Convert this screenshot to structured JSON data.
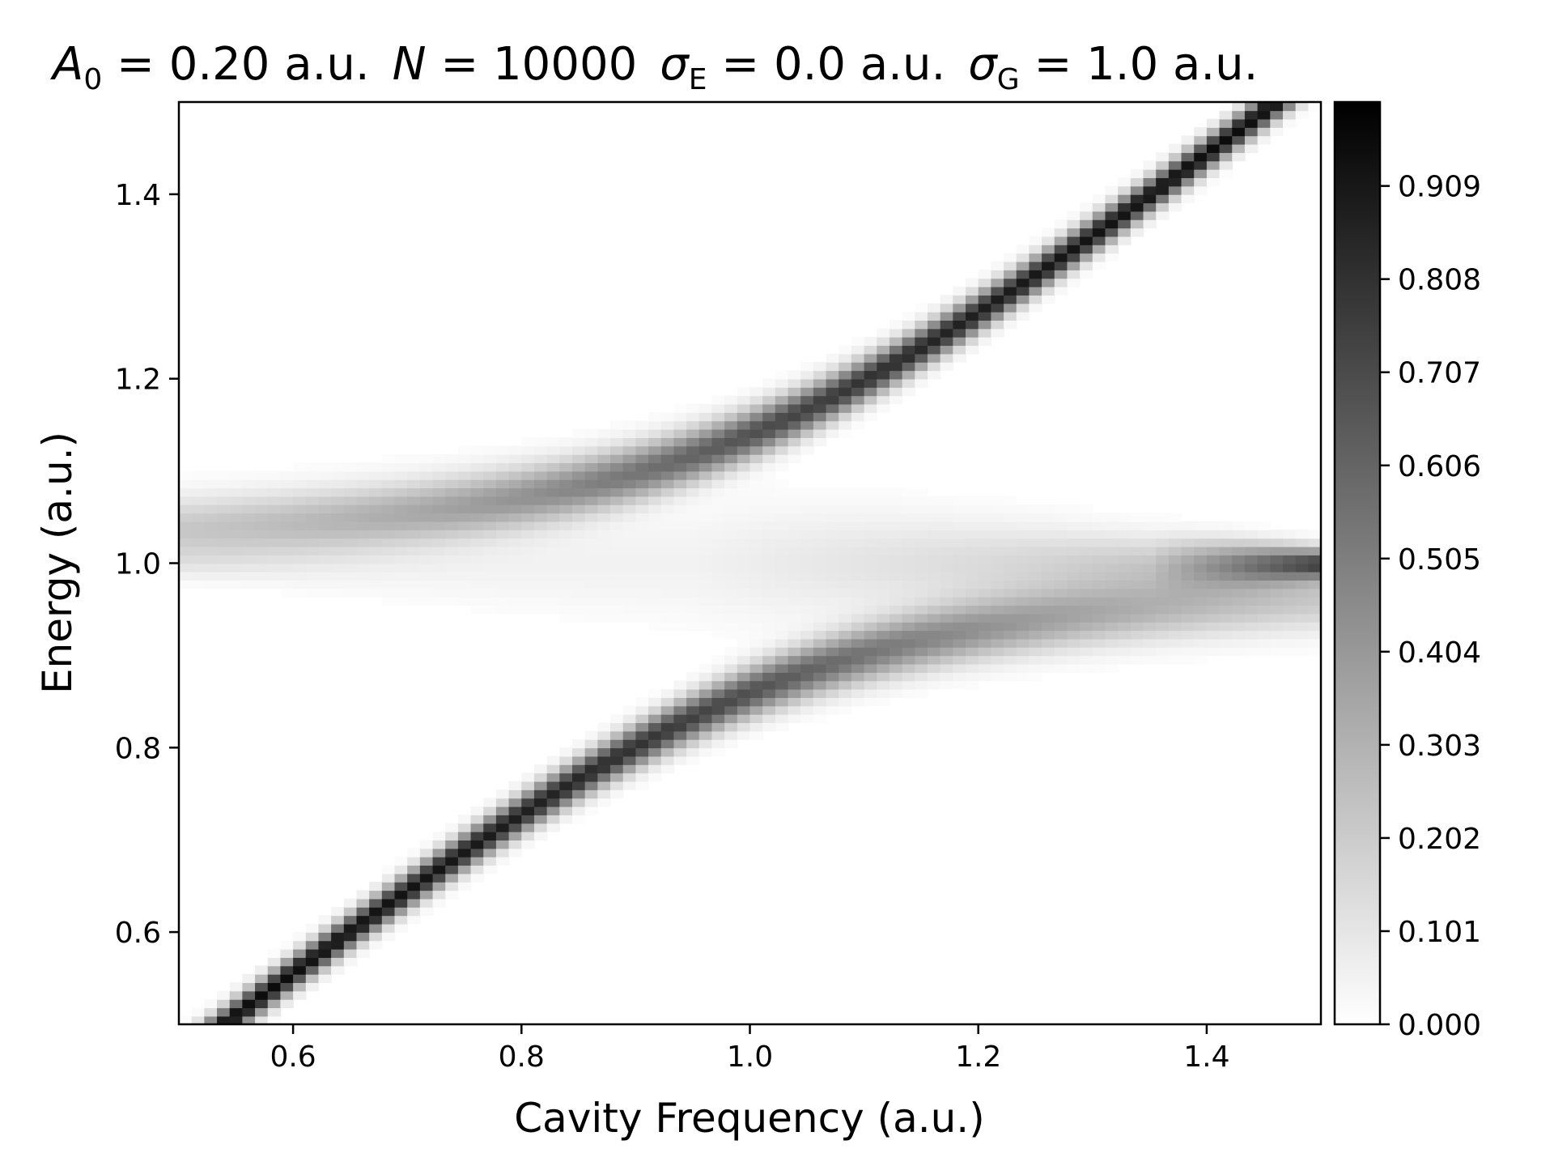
{
  "chart_data": {
    "type": "heatmap",
    "title": {
      "A_symbol": "A",
      "A_sub": "0",
      "A_rest": " = 0.20 a.u.",
      "N_symbol": "N",
      "N_rest": " = 10000",
      "sigmaE_symbol": "σ",
      "sigmaE_sub": "E",
      "sigmaE_rest": " = 0.0 a.u.",
      "sigmaG_symbol": "σ",
      "sigmaG_sub": "G",
      "sigmaG_rest": " = 1.0 a.u."
    },
    "xlabel": "Cavity Frequency (a.u.)",
    "ylabel": "Energy (a.u.)",
    "xlim": [
      0.5,
      1.5
    ],
    "ylim": [
      0.5,
      1.5
    ],
    "x_ticks": [
      "0.6",
      "0.8",
      "1.0",
      "1.2",
      "1.4"
    ],
    "x_tick_values": [
      0.6,
      0.8,
      1.0,
      1.2,
      1.4
    ],
    "y_ticks": [
      "0.6",
      "0.8",
      "1.0",
      "1.2",
      "1.4"
    ],
    "y_tick_values": [
      0.6,
      0.8,
      1.0,
      1.2,
      1.4
    ],
    "colormap": "gray_r",
    "colorbar": {
      "range": [
        0.0,
        1.0
      ],
      "tick_labels": [
        "0.000",
        "0.101",
        "0.202",
        "0.303",
        "0.404",
        "0.505",
        "0.606",
        "0.707",
        "0.808",
        "0.909"
      ],
      "tick_values": [
        0.0,
        0.101,
        0.202,
        0.303,
        0.404,
        0.505,
        0.606,
        0.707,
        0.808,
        0.909
      ]
    },
    "exciton_energy": 1.0,
    "rabi_coupling": 0.14,
    "grid": false,
    "legend": false
  }
}
